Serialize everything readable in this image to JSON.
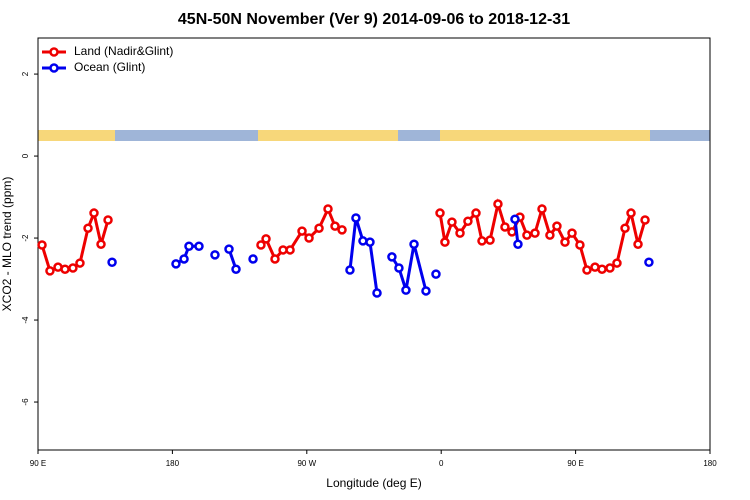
{
  "chart_data": {
    "type": "line",
    "title": "45N-50N November (Ver 9)   2014-09-06 to 2018-12-31",
    "xlabel": "Longitude (deg E)",
    "ylabel": "XCO2 - MLO trend (ppm)",
    "xlim": [
      90,
      540
    ],
    "xticks": [
      {
        "value": 90,
        "label": "90 E"
      },
      180,
      {
        "value": 270,
        "label": "90 W"
      },
      {
        "value": 360,
        "label": "0"
      },
      {
        "value": 450,
        "label": "90 E"
      },
      {
        "value": 540,
        "label": "180"
      }
    ],
    "ylim": [
      -7.17,
      2.88
    ],
    "yticks": [
      -6,
      -4,
      -2,
      0,
      2
    ],
    "legend": "upper left",
    "series": [
      {
        "name": "Land (Nadir&Glint)",
        "color": "#ee0000",
        "x": [
          92.7,
          98.0,
          103.4,
          108.1,
          113.4,
          118.1,
          123.5,
          127.5,
          132.2,
          136.9,
          null,
          239.3,
          242.7,
          248.7,
          254.1,
          258.8,
          266.8,
          271.5,
          278.2,
          284.2,
          288.9,
          293.6,
          null,
          359.2,
          362.5,
          367.2,
          372.6,
          377.9,
          383.3,
          387.3,
          392.7,
          398.0,
          402.7,
          407.4,
          412.7,
          417.4,
          422.8,
          427.5,
          432.8,
          437.5,
          442.9,
          447.6,
          452.9,
          457.6,
          463.0,
          467.7,
          473.0,
          477.7,
          483.1,
          487.1,
          491.8,
          496.5
        ],
        "values": [
          -2.17,
          -2.8,
          -2.71,
          -2.76,
          -2.73,
          -2.61,
          -1.76,
          -1.39,
          -2.15,
          -1.56,
          null,
          -2.17,
          -2.02,
          -2.51,
          -2.29,
          -2.29,
          -1.83,
          -2.0,
          -1.76,
          -1.29,
          -1.71,
          -1.8,
          null,
          -1.39,
          -2.1,
          -1.61,
          -1.88,
          -1.59,
          -1.39,
          -2.07,
          -2.05,
          -1.17,
          -1.73,
          -1.85,
          -1.49,
          -1.93,
          -1.88,
          -1.29,
          -1.93,
          -1.71,
          -2.1,
          -1.88,
          -2.17,
          -2.78,
          -2.71,
          -2.76,
          -2.73,
          -2.61,
          -1.76,
          -1.39,
          -2.15,
          -1.56
        ]
      },
      {
        "name": "Ocean (Glint)",
        "color": "#0000ee",
        "x": [
          139.6,
          null,
          182.4,
          187.8,
          191.1,
          197.8,
          null,
          208.5,
          null,
          217.9,
          222.6,
          null,
          234.0,
          null,
          298.9,
          302.9,
          307.6,
          312.3,
          317.0,
          null,
          327.0,
          331.7,
          336.4,
          341.8,
          349.8,
          null,
          356.5,
          null,
          409.4,
          411.4,
          null,
          499.1
        ],
        "values": [
          -2.59,
          null,
          -2.63,
          -2.51,
          -2.2,
          -2.2,
          null,
          -2.41,
          null,
          -2.27,
          -2.76,
          null,
          -2.51,
          null,
          -2.78,
          -1.51,
          -2.07,
          -2.1,
          -3.34,
          null,
          -2.46,
          -2.73,
          -3.27,
          -2.15,
          -3.29,
          null,
          -2.88,
          null,
          -1.54,
          -2.15,
          null,
          -2.59
        ]
      }
    ]
  }
}
